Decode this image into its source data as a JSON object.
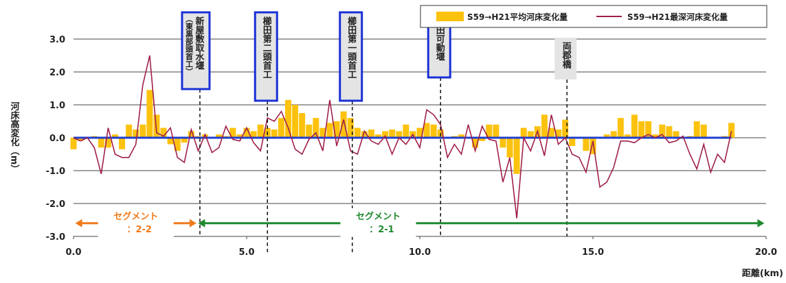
{
  "chart_data": {
    "type": "bar",
    "x": [
      0.0,
      0.2,
      0.4,
      0.6,
      0.8,
      1.0,
      1.2,
      1.4,
      1.6,
      1.8,
      2.0,
      2.2,
      2.4,
      2.6,
      2.8,
      3.0,
      3.2,
      3.4,
      3.6,
      3.8,
      4.0,
      4.2,
      4.4,
      4.6,
      4.8,
      5.0,
      5.2,
      5.4,
      5.6,
      5.8,
      6.0,
      6.2,
      6.4,
      6.6,
      6.8,
      7.0,
      7.2,
      7.4,
      7.6,
      7.8,
      8.0,
      8.2,
      8.4,
      8.6,
      8.8,
      9.0,
      9.2,
      9.4,
      9.6,
      9.8,
      10.0,
      10.2,
      10.4,
      10.6,
      10.8,
      11.0,
      11.2,
      11.4,
      11.6,
      11.8,
      12.0,
      12.2,
      12.4,
      12.6,
      12.8,
      13.0,
      13.2,
      13.4,
      13.6,
      13.8,
      14.0,
      14.2,
      14.4,
      14.6,
      14.8,
      15.0,
      15.2,
      15.4,
      15.6,
      15.8,
      16.0,
      16.2,
      16.4,
      16.6,
      16.8,
      17.0,
      17.2,
      17.4,
      17.6,
      17.8,
      18.0,
      18.2,
      18.4,
      18.6,
      18.8,
      19.0
    ],
    "series": [
      {
        "name": "S59→H21平均河床変化量",
        "type": "bar",
        "color": "#fcc20e",
        "values": [
          -0.35,
          -0.1,
          0.0,
          0.05,
          -0.3,
          -0.3,
          0.1,
          -0.35,
          0.4,
          0.25,
          0.4,
          1.45,
          0.7,
          0.3,
          -0.2,
          -0.4,
          -0.15,
          0.2,
          0.05,
          0.1,
          0.0,
          0.1,
          0.05,
          0.3,
          0.1,
          0.3,
          0.2,
          0.4,
          0.3,
          0.25,
          0.6,
          1.15,
          1.0,
          0.75,
          0.4,
          0.6,
          0.3,
          0.45,
          0.5,
          0.8,
          0.6,
          0.3,
          0.2,
          0.25,
          0.1,
          0.2,
          0.25,
          0.2,
          0.4,
          0.2,
          0.3,
          0.45,
          0.4,
          0.25,
          0.0,
          0.05,
          0.1,
          0.0,
          -0.3,
          -0.1,
          0.4,
          0.4,
          -0.3,
          -0.6,
          -1.1,
          0.3,
          0.2,
          0.35,
          0.7,
          0.3,
          0.25,
          0.55,
          -0.25,
          0.0,
          -0.4,
          -0.5,
          0.0,
          0.1,
          0.2,
          0.6,
          0.1,
          0.7,
          0.5,
          0.5,
          0.1,
          0.4,
          0.35,
          0.2,
          0.0,
          0.05,
          0.5,
          0.4,
          0.0,
          0.0,
          0.05,
          0.45
        ]
      },
      {
        "name": "S59→H21最深河床変化量",
        "type": "line",
        "color": "#a0204a",
        "values": [
          0.0,
          -0.1,
          0.0,
          -0.3,
          -1.1,
          0.3,
          -0.5,
          -0.6,
          -0.6,
          -0.2,
          1.6,
          2.5,
          0.15,
          0.05,
          0.3,
          -0.6,
          -0.75,
          0.25,
          -0.4,
          0.1,
          -0.45,
          -0.3,
          0.35,
          -0.05,
          -0.1,
          0.3,
          -0.15,
          -0.4,
          0.6,
          0.5,
          0.8,
          0.3,
          -0.35,
          -0.5,
          -0.05,
          0.15,
          -0.4,
          1.15,
          -0.25,
          0.55,
          -0.4,
          -0.5,
          0.2,
          -0.1,
          -0.2,
          0.05,
          -0.5,
          0.0,
          -0.2,
          0.1,
          -0.3,
          0.85,
          0.7,
          0.4,
          -0.6,
          -0.2,
          -0.5,
          0.4,
          -0.4,
          0.35,
          -0.05,
          -0.1,
          -1.35,
          -0.6,
          -2.45,
          0.0,
          -0.4,
          0.2,
          -0.55,
          0.7,
          -0.2,
          0.0,
          -0.5,
          -0.6,
          -1.05,
          -0.1,
          -1.5,
          -1.35,
          -0.9,
          -0.1,
          -0.1,
          -0.15,
          0.0,
          0.1,
          0.0,
          0.1,
          -0.15,
          -0.1,
          0.05,
          -0.5,
          -0.95,
          -0.2,
          -1.05,
          -0.5,
          -0.75,
          0.2
        ]
      }
    ],
    "xlim": [
      0,
      20
    ],
    "ylim": [
      -3,
      3
    ],
    "xticks": [
      {
        "value": 0,
        "label": "0.0"
      },
      {
        "value": 5,
        "label": "5.0"
      },
      {
        "value": 10,
        "label": "10.0"
      },
      {
        "value": 15,
        "label": "15.0"
      },
      {
        "value": 20,
        "label": "20.0"
      }
    ],
    "yticks": [
      {
        "value": 3,
        "label": "3.0"
      },
      {
        "value": 2,
        "label": "2.0"
      },
      {
        "value": 1,
        "label": "1.0"
      },
      {
        "value": 0,
        "label": "0.0"
      },
      {
        "value": -1,
        "label": "-1.0"
      },
      {
        "value": -2,
        "label": "-2.0"
      },
      {
        "value": -3,
        "label": "-3.0"
      }
    ],
    "grid": true,
    "x_label": "距離(km)",
    "y_label": "河床高変化（m）",
    "structures": [
      {
        "label": "新屋敷取水堰",
        "sublabel": "（東黒部頭首工）",
        "x": 3.65
      },
      {
        "label": "櫛田第二頭首工",
        "x": 5.6
      },
      {
        "label": "櫛田第一頭首工",
        "x": 8.05
      },
      {
        "label": "櫛田可動堰",
        "x": 10.6
      },
      {
        "label": "両郡橋",
        "x": 14.25
      }
    ],
    "segments": [
      {
        "lines": [
          "セグメント",
          "：2-2"
        ],
        "from": 0.05,
        "to": 3.55,
        "color": "#f07a1a"
      },
      {
        "lines": [
          "セグメント",
          "：2-1"
        ],
        "from": 3.6,
        "to": 19.95,
        "color": "#1e8a2e"
      }
    ]
  }
}
